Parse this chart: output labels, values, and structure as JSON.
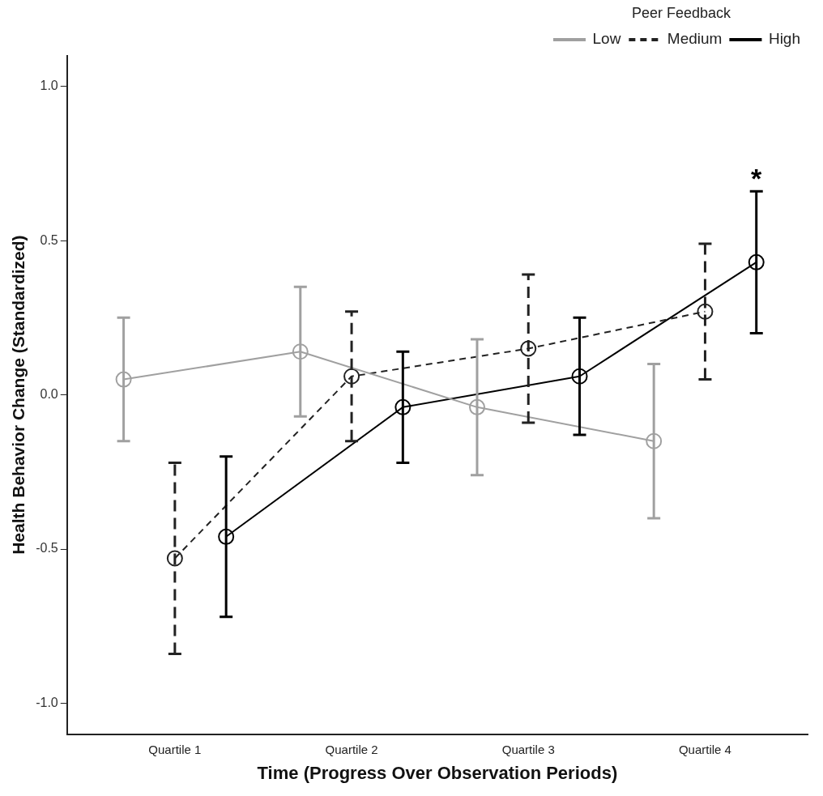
{
  "chart_data": {
    "type": "line",
    "xlabel": "Time (Progress Over Observation Periods)",
    "ylabel": "Health Behavior Change (Standardized)",
    "categories": [
      "Quartile 1",
      "Quartile 2",
      "Quartile 3",
      "Quartile 4"
    ],
    "ylim": [
      -1.1,
      1.1
    ],
    "yticks": [
      {
        "value": -1,
        "label": "-1.0"
      },
      {
        "value": -0.5,
        "label": "-0.5"
      },
      {
        "value": 0,
        "label": "0.0"
      },
      {
        "value": 0.5,
        "label": "0.5"
      },
      {
        "value": 1,
        "label": "1.0"
      }
    ],
    "series": [
      {
        "name": "Low",
        "color": "#a0a0a0",
        "line_style": "solid",
        "values": [
          0.05,
          0.14,
          -0.04,
          -0.15
        ],
        "errors": [
          0.2,
          0.21,
          0.22,
          0.25
        ]
      },
      {
        "name": "Medium",
        "color": "#222222",
        "line_style": "dashed",
        "values": [
          -0.53,
          0.06,
          0.15,
          0.27
        ],
        "errors": [
          0.31,
          0.21,
          0.24,
          0.22
        ]
      },
      {
        "name": "High",
        "color": "#000000",
        "line_style": "solid",
        "values": [
          -0.46,
          -0.04,
          0.06,
          0.43
        ],
        "errors": [
          0.26,
          0.18,
          0.19,
          0.23
        ]
      }
    ],
    "marker": "circle",
    "grid": false,
    "legend": "top right",
    "legend_title": "Peer Feedback",
    "annotations": [
      "*"
    ]
  }
}
